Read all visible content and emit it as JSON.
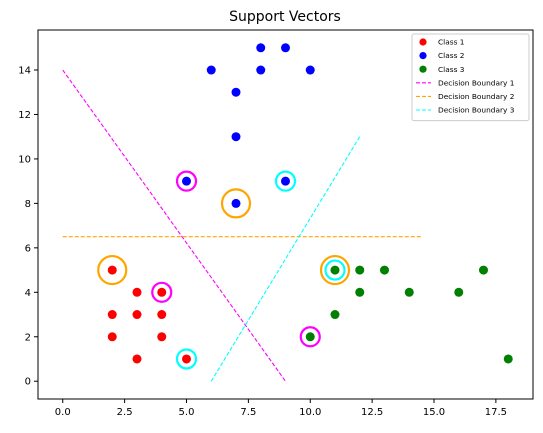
{
  "chart_data": {
    "type": "scatter",
    "title": "Support Vectors",
    "xlabel": "",
    "ylabel": "",
    "xlim": [
      -1,
      19
    ],
    "ylim": [
      -0.8,
      15.8
    ],
    "xticks": [
      0.0,
      2.5,
      5.0,
      7.5,
      10.0,
      12.5,
      15.0,
      17.5
    ],
    "xtick_labels": [
      "0.0",
      "2.5",
      "5.0",
      "7.5",
      "10.0",
      "12.5",
      "15.0",
      "17.5"
    ],
    "yticks": [
      0,
      2,
      4,
      6,
      8,
      10,
      12,
      14
    ],
    "ytick_labels": [
      "0",
      "2",
      "4",
      "6",
      "8",
      "10",
      "12",
      "14"
    ],
    "grid": false,
    "legend_position": "top-right",
    "series": [
      {
        "name": "Class 1",
        "kind": "points",
        "color": "#ff0000",
        "points": [
          [
            2,
            5
          ],
          [
            2,
            3
          ],
          [
            2,
            2
          ],
          [
            3,
            4
          ],
          [
            3,
            3
          ],
          [
            3,
            1
          ],
          [
            4,
            4
          ],
          [
            4,
            3
          ],
          [
            4,
            2
          ],
          [
            5,
            1
          ]
        ]
      },
      {
        "name": "Class 2",
        "kind": "points",
        "color": "#0000ff",
        "points": [
          [
            5,
            9
          ],
          [
            6,
            14
          ],
          [
            7,
            13
          ],
          [
            7,
            11
          ],
          [
            7,
            8
          ],
          [
            8,
            15
          ],
          [
            8,
            14
          ],
          [
            9,
            15
          ],
          [
            9,
            9
          ],
          [
            10,
            14
          ]
        ]
      },
      {
        "name": "Class 3",
        "kind": "points",
        "color": "#008000",
        "points": [
          [
            10,
            2
          ],
          [
            11,
            5
          ],
          [
            11,
            3
          ],
          [
            12,
            5
          ],
          [
            12,
            4
          ],
          [
            13,
            5
          ],
          [
            14,
            4
          ],
          [
            16,
            4
          ],
          [
            17,
            5
          ],
          [
            18,
            1
          ]
        ]
      },
      {
        "name": "Decision Boundary 1",
        "kind": "line",
        "color": "#ff00ff",
        "points": [
          [
            0,
            14
          ],
          [
            9,
            0
          ]
        ]
      },
      {
        "name": "Decision Boundary 2",
        "kind": "line",
        "color": "#ffa500",
        "points": [
          [
            0,
            6.5
          ],
          [
            14.5,
            6.5
          ]
        ]
      },
      {
        "name": "Decision Boundary 3",
        "kind": "line",
        "color": "#00ffff",
        "points": [
          [
            6,
            0
          ],
          [
            12,
            11
          ]
        ]
      }
    ],
    "support_vectors": [
      {
        "boundary": "Decision Boundary 1",
        "color": "#ff00ff",
        "points": [
          [
            5,
            9
          ],
          [
            4,
            4
          ],
          [
            10,
            2
          ]
        ]
      },
      {
        "boundary": "Decision Boundary 2",
        "color": "#ffa500",
        "points": [
          [
            7,
            8
          ],
          [
            2,
            5
          ],
          [
            11,
            5
          ]
        ]
      },
      {
        "boundary": "Decision Boundary 3",
        "color": "#00ffff",
        "points": [
          [
            9,
            9
          ],
          [
            5,
            1
          ],
          [
            11,
            5
          ]
        ]
      }
    ]
  }
}
